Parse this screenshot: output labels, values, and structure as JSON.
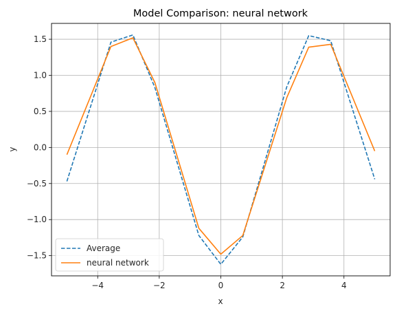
{
  "chart_data": {
    "type": "line",
    "title": "Model Comparison: neural network",
    "xlabel": "x",
    "ylabel": "y",
    "xlim": [
      -5.5,
      5.5
    ],
    "ylim": [
      -1.78,
      1.72
    ],
    "grid": true,
    "legend_position": "lower-left",
    "x_ticks": [
      -4,
      -2,
      0,
      2,
      4
    ],
    "x_tick_labels": [
      "−4",
      "−2",
      "0",
      "2",
      "4"
    ],
    "y_ticks": [
      -1.5,
      -1.0,
      -0.5,
      0.0,
      0.5,
      1.0,
      1.5
    ],
    "y_tick_labels": [
      "−1.5",
      "−1.0",
      "−0.5",
      "0.0",
      "0.5",
      "1.0",
      "1.5"
    ],
    "x": [
      -5.0,
      -3.571,
      -2.857,
      -2.143,
      -0.714,
      0.0,
      0.714,
      2.143,
      2.857,
      3.571,
      5.0
    ],
    "series": [
      {
        "name": "Average",
        "color": "#1f77b4",
        "style": "dashed",
        "values": [
          -0.47,
          1.46,
          1.56,
          0.83,
          -1.22,
          -1.62,
          -1.24,
          0.84,
          1.55,
          1.48,
          -0.44
        ]
      },
      {
        "name": "neural network",
        "color": "#ff7f0e",
        "style": "solid",
        "values": [
          -0.1,
          1.4,
          1.52,
          0.9,
          -1.12,
          -1.48,
          -1.22,
          0.69,
          1.39,
          1.43,
          -0.05
        ]
      }
    ]
  }
}
